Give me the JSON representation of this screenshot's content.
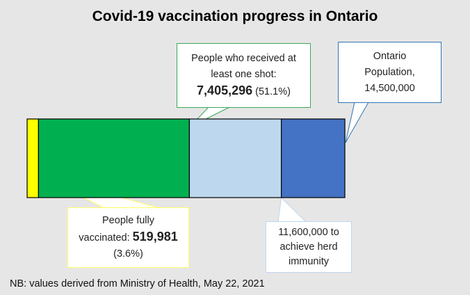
{
  "chart_data": {
    "type": "bar",
    "orientation": "horizontal-stacked-progress",
    "title": "Covid-19 vaccination progress in Ontario",
    "total": 14500000,
    "segments": [
      {
        "name": "People fully vaccinated",
        "value": 519981,
        "percent": 3.6,
        "color": "#ffff00"
      },
      {
        "name": "People who received at least one shot",
        "value": 7405296,
        "percent": 51.1,
        "color": "#00b050"
      },
      {
        "name": "To achieve herd immunity",
        "value": 11600000,
        "color": "#bdd7ee"
      },
      {
        "name": "Ontario Population",
        "value": 14500000,
        "color": "#4472c4"
      }
    ],
    "annotations": {
      "fully": {
        "line1": "People fully",
        "line2": "vaccinated: ",
        "value": "519,981",
        "pct": "(3.6%)"
      },
      "one_shot": {
        "line1": "People who received at",
        "line2": "least one shot:",
        "value": "7,405,296",
        "pct": " (51.1%)"
      },
      "herd": {
        "line1": "11,600,000 to",
        "line2": "achieve herd",
        "line3": "immunity"
      },
      "population": {
        "line1": "Ontario",
        "line2": "Population,",
        "line3": "14,500,000"
      }
    },
    "note": "NB: values derived from Ministry of Health, May 22, 2021"
  }
}
